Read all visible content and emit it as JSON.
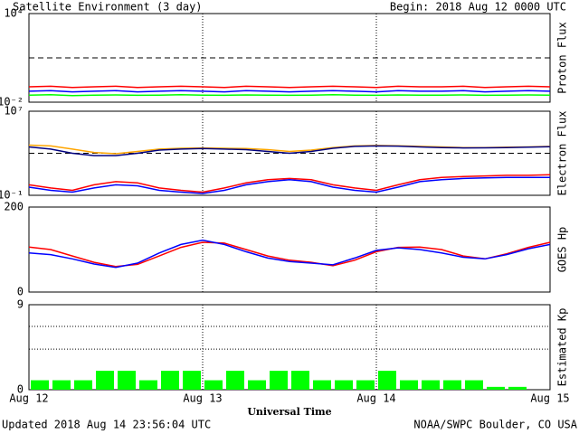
{
  "header": {
    "title": "Satellite Environment (3 day)",
    "begin": "Begin:  2018 Aug 12 0000 UTC"
  },
  "footer": {
    "updated": "Updated 2018 Aug 14 23:56:04 UTC",
    "source": "NOAA/SWPC Boulder, CO USA",
    "xlabel": "Universal Time"
  },
  "chart_data": [
    {
      "type": "line",
      "ylabel": "Proton Flux",
      "log": true,
      "ylim": [
        0.01,
        10000
      ],
      "yticks": [
        {
          "value": 10000,
          "label": "10⁴"
        },
        {
          "value": 0.01,
          "label": "10⁻²"
        }
      ],
      "hlines": [
        10
      ],
      "xlim": [
        0,
        72
      ],
      "xticks": [
        {
          "value": 0,
          "label": "Aug 12"
        },
        {
          "value": 24,
          "label": "Aug 13"
        },
        {
          "value": 48,
          "label": "Aug 14"
        },
        {
          "value": 72,
          "label": "Aug 15"
        }
      ],
      "x": [
        0,
        3,
        6,
        9,
        12,
        15,
        18,
        21,
        24,
        27,
        30,
        33,
        36,
        39,
        42,
        45,
        48,
        51,
        54,
        57,
        60,
        63,
        66,
        69,
        72
      ],
      "series": [
        {
          "color": "#ff0000",
          "values": [
            0.11,
            0.12,
            0.1,
            0.11,
            0.12,
            0.1,
            0.11,
            0.12,
            0.11,
            0.1,
            0.12,
            0.11,
            0.1,
            0.11,
            0.12,
            0.11,
            0.1,
            0.12,
            0.11,
            0.11,
            0.12,
            0.1,
            0.11,
            0.12,
            0.11
          ]
        },
        {
          "color": "#0000ff",
          "values": [
            0.055,
            0.06,
            0.05,
            0.055,
            0.06,
            0.05,
            0.055,
            0.06,
            0.055,
            0.05,
            0.06,
            0.055,
            0.05,
            0.055,
            0.06,
            0.055,
            0.05,
            0.06,
            0.055,
            0.055,
            0.06,
            0.05,
            0.055,
            0.06,
            0.055
          ]
        },
        {
          "color": "#00ff00",
          "values": [
            0.03,
            0.032,
            0.028,
            0.03,
            0.031,
            0.029,
            0.03,
            0.032,
            0.03,
            0.029,
            0.031,
            0.03,
            0.029,
            0.03,
            0.032,
            0.03,
            0.029,
            0.031,
            0.03,
            0.03,
            0.031,
            0.029,
            0.03,
            0.031,
            0.03
          ]
        }
      ]
    },
    {
      "type": "line",
      "ylabel": "Electron Flux",
      "log": true,
      "ylim": [
        0.1,
        10000000
      ],
      "yticks": [
        {
          "value": 10000000,
          "label": "10⁷"
        },
        {
          "value": 0.1,
          "label": "10⁻¹"
        }
      ],
      "hlines": [
        1000
      ],
      "xlim": [
        0,
        72
      ],
      "xticks": [
        0,
        24,
        48,
        72
      ],
      "x": [
        0,
        3,
        6,
        9,
        12,
        15,
        18,
        21,
        24,
        27,
        30,
        33,
        36,
        39,
        42,
        45,
        48,
        51,
        54,
        57,
        60,
        63,
        66,
        69,
        72
      ],
      "series": [
        {
          "color": "#ffa500",
          "values": [
            6000,
            5000,
            2500,
            1200,
            900,
            1500,
            2500,
            3000,
            3200,
            3000,
            2800,
            2200,
            1500,
            2000,
            3500,
            5000,
            5500,
            5200,
            4500,
            4000,
            3500,
            3500,
            3800,
            4000,
            4500
          ]
        },
        {
          "color": "#000080",
          "values": [
            4000,
            2500,
            1000,
            600,
            600,
            1000,
            2000,
            2500,
            2800,
            2500,
            2200,
            1500,
            1000,
            1500,
            3000,
            4500,
            5000,
            4800,
            4000,
            3500,
            3200,
            3300,
            3500,
            3800,
            4200
          ]
        },
        {
          "color": "#ff0000",
          "values": [
            1,
            0.5,
            0.3,
            1,
            2,
            1.5,
            0.5,
            0.3,
            0.2,
            0.5,
            1.5,
            3,
            4,
            3,
            1,
            0.5,
            0.3,
            1,
            3,
            5,
            6,
            7,
            8,
            8,
            9
          ]
        },
        {
          "color": "#0000ff",
          "values": [
            0.6,
            0.3,
            0.2,
            0.5,
            1,
            0.8,
            0.3,
            0.2,
            0.15,
            0.3,
            1,
            2,
            3,
            2,
            0.6,
            0.3,
            0.2,
            0.6,
            2,
            3,
            4,
            4.5,
            5,
            5,
            5
          ]
        }
      ]
    },
    {
      "type": "line",
      "ylabel": "GOES Hp",
      "log": false,
      "ylim": [
        0,
        200
      ],
      "yticks": [
        200,
        0
      ],
      "xlim": [
        0,
        72
      ],
      "xticks": [
        0,
        24,
        48,
        72
      ],
      "x": [
        0,
        3,
        6,
        9,
        12,
        15,
        18,
        21,
        24,
        27,
        30,
        33,
        36,
        39,
        42,
        45,
        48,
        51,
        54,
        57,
        60,
        63,
        66,
        69,
        72
      ],
      "series": [
        {
          "color": "#ff0000",
          "values": [
            106,
            100,
            85,
            70,
            60,
            65,
            85,
            105,
            117,
            115,
            100,
            85,
            75,
            70,
            62,
            75,
            95,
            105,
            106,
            100,
            85,
            78,
            90,
            105,
            117
          ]
        },
        {
          "color": "#0000ff",
          "values": [
            92,
            88,
            78,
            66,
            58,
            68,
            92,
            112,
            122,
            112,
            95,
            80,
            72,
            68,
            64,
            80,
            98,
            104,
            100,
            92,
            82,
            78,
            88,
            102,
            112
          ]
        }
      ]
    },
    {
      "type": "bar",
      "ylabel": "Estimated Kp",
      "log": false,
      "ylim": [
        0,
        9
      ],
      "yticks": [
        9,
        0
      ],
      "hlines": [
        4.3,
        6.7,
        9
      ],
      "xlim": [
        0,
        72
      ],
      "xticks": [
        0,
        24,
        48,
        72
      ],
      "color": "#00ff00",
      "x": [
        1.5,
        4.5,
        7.5,
        10.5,
        13.5,
        16.5,
        19.5,
        22.5,
        25.5,
        28.5,
        31.5,
        34.5,
        37.5,
        40.5,
        43.5,
        46.5,
        49.5,
        52.5,
        55.5,
        58.5,
        61.5,
        64.5,
        67.5,
        70.5
      ],
      "values": [
        1,
        1,
        1,
        2,
        2,
        1,
        2,
        2,
        1,
        2,
        1,
        2,
        2,
        1,
        1,
        1,
        2,
        1,
        1,
        1,
        1,
        0.3,
        0.3,
        0
      ]
    }
  ]
}
